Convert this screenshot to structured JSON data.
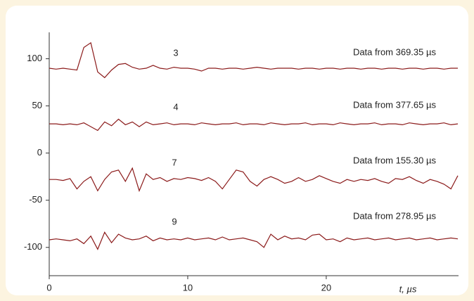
{
  "chart_data": {
    "type": "line",
    "x_label": "t, µs",
    "x": [
      0,
      0.5,
      1,
      1.5,
      2,
      2.5,
      3,
      3.5,
      4,
      4.5,
      5,
      5.5,
      6,
      6.5,
      7,
      7.5,
      8,
      8.5,
      9,
      9.5,
      10,
      10.5,
      11,
      11.5,
      12,
      12.5,
      13,
      13.5,
      14,
      14.5,
      15,
      15.5,
      16,
      16.5,
      17,
      17.5,
      18,
      18.5,
      19,
      19.5,
      20,
      20.5,
      21,
      21.5,
      22,
      22.5,
      23,
      23.5,
      24,
      24.5,
      25,
      25.5,
      26,
      26.5,
      27,
      27.5,
      28,
      28.5,
      29,
      29.5
    ],
    "series": [
      {
        "name": "3",
        "color": "#8b1a1a",
        "values": [
          90,
          89,
          90,
          89,
          88,
          112,
          117,
          86,
          80,
          88,
          94,
          95,
          91,
          89,
          90,
          93,
          90,
          89,
          91,
          90,
          90,
          89,
          87,
          90,
          90,
          89,
          90,
          90,
          89,
          90,
          91,
          90,
          89,
          90,
          90,
          90,
          89,
          90,
          90,
          89,
          90,
          90,
          89,
          90,
          90,
          89,
          90,
          90,
          89,
          90,
          90,
          89,
          90,
          90,
          89,
          90,
          90,
          89,
          90,
          90
        ]
      },
      {
        "name": "4",
        "color": "#8b1a1a",
        "values": [
          31,
          31,
          30,
          31,
          30,
          32,
          28,
          24,
          33,
          29,
          36,
          30,
          33,
          28,
          33,
          30,
          31,
          32,
          30,
          31,
          31,
          30,
          32,
          31,
          30,
          31,
          31,
          32,
          30,
          31,
          31,
          30,
          32,
          31,
          30,
          31,
          31,
          32,
          30,
          31,
          31,
          30,
          32,
          31,
          30,
          31,
          31,
          32,
          30,
          31,
          31,
          30,
          32,
          31,
          30,
          31,
          31,
          32,
          30,
          31
        ]
      },
      {
        "name": "7",
        "color": "#8b1a1a",
        "values": [
          -28,
          -28,
          -29,
          -27,
          -38,
          -30,
          -25,
          -40,
          -28,
          -20,
          -18,
          -30,
          -16,
          -40,
          -22,
          -28,
          -26,
          -30,
          -27,
          -28,
          -26,
          -27,
          -29,
          -26,
          -30,
          -38,
          -28,
          -18,
          -20,
          -30,
          -35,
          -28,
          -25,
          -28,
          -32,
          -30,
          -26,
          -30,
          -28,
          -24,
          -27,
          -30,
          -32,
          -28,
          -30,
          -28,
          -29,
          -27,
          -30,
          -32,
          -27,
          -28,
          -25,
          -29,
          -32,
          -28,
          -30,
          -33,
          -38,
          -24
        ]
      },
      {
        "name": "9",
        "color": "#8b1a1a",
        "values": [
          -92,
          -91,
          -92,
          -93,
          -91,
          -96,
          -88,
          -102,
          -84,
          -95,
          -86,
          -90,
          -92,
          -91,
          -88,
          -93,
          -90,
          -92,
          -91,
          -92,
          -90,
          -92,
          -91,
          -90,
          -92,
          -89,
          -92,
          -91,
          -90,
          -92,
          -94,
          -100,
          -86,
          -92,
          -88,
          -91,
          -90,
          -92,
          -87,
          -86,
          -92,
          -91,
          -94,
          -90,
          -92,
          -91,
          -90,
          -92,
          -91,
          -90,
          -92,
          -91,
          -90,
          -92,
          -91,
          -90,
          -92,
          -91,
          -90,
          -91
        ]
      }
    ],
    "annotations": [
      "Data from 369.35 µs",
      "Data from 377.65 µs",
      "Data from 155.30 µs",
      "Data from 278.95 µs"
    ],
    "xlim": [
      0,
      29.5
    ],
    "ylim": [
      -130,
      128
    ],
    "xticks": [
      0,
      10,
      20
    ],
    "yticks": [
      100,
      50,
      0,
      -50,
      -100
    ]
  }
}
